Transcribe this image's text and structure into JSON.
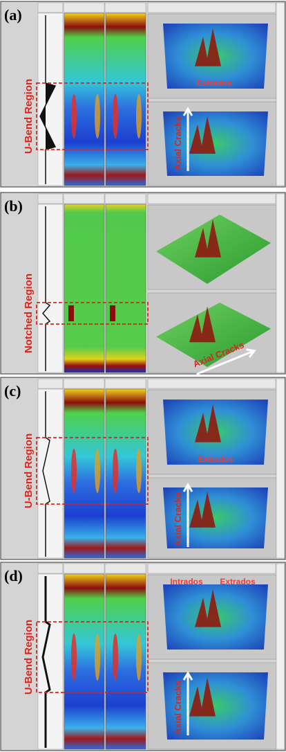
{
  "panels": [
    {
      "label": "(a)",
      "region": "U-Bend Region",
      "annotations": [
        "Extrados"
      ],
      "crack_label": "Axial Cracks"
    },
    {
      "label": "(b)",
      "region": "Notched Region",
      "crack_label": "Axial Cracks"
    },
    {
      "label": "(c)",
      "region": "U-Bend Region",
      "annotations": [
        "Extrados"
      ],
      "crack_label": "Axial Cracks"
    },
    {
      "label": "(d)",
      "region": "U-Bend Region",
      "annotations": [
        "Intrados",
        "Extrados"
      ],
      "crack_label": "Axial Cracks"
    }
  ]
}
